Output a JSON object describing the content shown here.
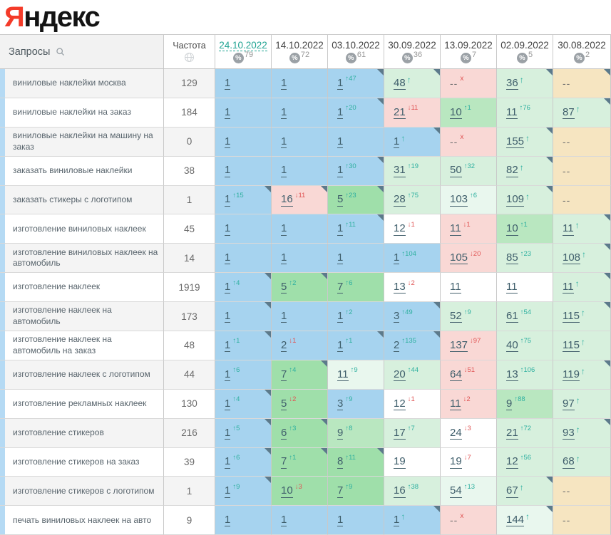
{
  "logo": {
    "first_letter": "Я",
    "rest": "ндекс"
  },
  "colors": {
    "logo_red": "#f43b29",
    "current_date_teal": "#23a493",
    "change_up_teal": "#2fb0a0",
    "change_down_red": "#e05555",
    "top3_blue": "#a6d3ef",
    "top10_green": "#9fdfaa",
    "green_light": "#b9e7c0",
    "green_pale": "#d7f0dd",
    "green_faint": "#e9f7ee",
    "declined_pink": "#f9d8d5",
    "absent_tan": "#f6e5c1",
    "note_corner": "#5c7a8b",
    "row_accent_strip": "#b5daf4"
  },
  "table": {
    "queries_header": "Запросы",
    "frequency_header": "Частота",
    "percent_glyph": "%",
    "date_columns": [
      {
        "date": "24.10.2022",
        "coverage": "79",
        "current": true
      },
      {
        "date": "14.10.2022",
        "coverage": "72",
        "current": false
      },
      {
        "date": "03.10.2022",
        "coverage": "61",
        "current": false
      },
      {
        "date": "30.09.2022",
        "coverage": "36",
        "current": false
      },
      {
        "date": "13.09.2022",
        "coverage": "7",
        "current": false
      },
      {
        "date": "02.09.2022",
        "coverage": "5",
        "current": false
      },
      {
        "date": "30.08.2022",
        "coverage": "2",
        "current": false
      }
    ],
    "rows": [
      {
        "query": "виниловые наклейки москва",
        "frequency": "129",
        "cells": [
          {
            "p": "1",
            "bg": "blue"
          },
          {
            "p": "1",
            "bg": "blue"
          },
          {
            "p": "1",
            "c": "47",
            "d": "up",
            "bg": "blue",
            "note": true
          },
          {
            "p": "48",
            "n": true,
            "bg": "g3",
            "note": true
          },
          {
            "p": "--",
            "x": true,
            "bg": "pink"
          },
          {
            "p": "36",
            "n": true,
            "bg": "g3",
            "note": true
          },
          {
            "p": "--",
            "bg": "tan",
            "note": true
          }
        ]
      },
      {
        "query": "виниловые наклейки на заказ",
        "frequency": "184",
        "cells": [
          {
            "p": "1",
            "bg": "blue"
          },
          {
            "p": "1",
            "bg": "blue"
          },
          {
            "p": "1",
            "c": "20",
            "d": "up",
            "bg": "blue",
            "note": true
          },
          {
            "p": "21",
            "c": "11",
            "d": "down",
            "bg": "pink"
          },
          {
            "p": "10",
            "c": "1",
            "d": "up",
            "bg": "g2"
          },
          {
            "p": "11",
            "c": "76",
            "d": "up",
            "bg": "g3"
          },
          {
            "p": "87",
            "n": true,
            "bg": "g3",
            "note": true
          }
        ]
      },
      {
        "query": "виниловые наклейки на машину на заказ",
        "frequency": "0",
        "cells": [
          {
            "p": "1",
            "bg": "blue"
          },
          {
            "p": "1",
            "bg": "blue"
          },
          {
            "p": "1",
            "bg": "blue"
          },
          {
            "p": "1",
            "n": true,
            "bg": "blue",
            "note": true
          },
          {
            "p": "--",
            "x": true,
            "bg": "pink"
          },
          {
            "p": "155",
            "n": true,
            "bg": "g3",
            "note": true
          },
          {
            "p": "--",
            "bg": "tan"
          }
        ]
      },
      {
        "query": "заказать виниловые наклейки",
        "frequency": "38",
        "cells": [
          {
            "p": "1",
            "bg": "blue"
          },
          {
            "p": "1",
            "bg": "blue"
          },
          {
            "p": "1",
            "c": "30",
            "d": "up",
            "bg": "blue",
            "note": true
          },
          {
            "p": "31",
            "c": "19",
            "d": "up",
            "bg": "g3"
          },
          {
            "p": "50",
            "c": "32",
            "d": "up",
            "bg": "g3"
          },
          {
            "p": "82",
            "n": true,
            "bg": "g3",
            "note": true
          },
          {
            "p": "--",
            "bg": "tan"
          }
        ]
      },
      {
        "query": "заказать стикеры с логотипом",
        "frequency": "1",
        "cells": [
          {
            "p": "1",
            "c": "15",
            "d": "up",
            "bg": "blue",
            "note": true
          },
          {
            "p": "16",
            "c": "11",
            "d": "down",
            "bg": "pink",
            "note": true
          },
          {
            "p": "5",
            "c": "23",
            "d": "up",
            "bg": "g1",
            "note": true
          },
          {
            "p": "28",
            "c": "75",
            "d": "up",
            "bg": "g3"
          },
          {
            "p": "103",
            "c": "6",
            "d": "up",
            "bg": "g4"
          },
          {
            "p": "109",
            "n": true,
            "bg": "g3",
            "note": true
          },
          {
            "p": "--",
            "bg": "tan"
          }
        ]
      },
      {
        "query": "изготовление виниловых наклеек",
        "frequency": "45",
        "cells": [
          {
            "p": "1",
            "bg": "blue"
          },
          {
            "p": "1",
            "bg": "blue"
          },
          {
            "p": "1",
            "c": "11",
            "d": "up",
            "bg": "blue",
            "note": true
          },
          {
            "p": "12",
            "c": "1",
            "d": "down",
            "bg": "white"
          },
          {
            "p": "11",
            "c": "1",
            "d": "down",
            "bg": "pink"
          },
          {
            "p": "10",
            "c": "1",
            "d": "up",
            "bg": "g2"
          },
          {
            "p": "11",
            "n": true,
            "bg": "g3",
            "note": true
          }
        ]
      },
      {
        "query": "изготовление виниловых наклеек на автомобиль",
        "frequency": "14",
        "cells": [
          {
            "p": "1",
            "bg": "blue"
          },
          {
            "p": "1",
            "bg": "blue"
          },
          {
            "p": "1",
            "bg": "blue"
          },
          {
            "p": "1",
            "c": "104",
            "d": "up",
            "bg": "blue"
          },
          {
            "p": "105",
            "c": "20",
            "d": "down",
            "bg": "pink"
          },
          {
            "p": "85",
            "c": "23",
            "d": "up",
            "bg": "g3"
          },
          {
            "p": "108",
            "n": true,
            "bg": "g3",
            "note": true
          }
        ]
      },
      {
        "query": "изготовление наклеек",
        "frequency": "1919",
        "cells": [
          {
            "p": "1",
            "c": "4",
            "d": "up",
            "bg": "blue",
            "note": true
          },
          {
            "p": "5",
            "c": "2",
            "d": "up",
            "bg": "g1",
            "note": true
          },
          {
            "p": "7",
            "c": "6",
            "d": "up",
            "bg": "g1"
          },
          {
            "p": "13",
            "c": "2",
            "d": "down",
            "bg": "white"
          },
          {
            "p": "11",
            "bg": "white"
          },
          {
            "p": "11",
            "bg": "white"
          },
          {
            "p": "11",
            "n": true,
            "bg": "g3",
            "note": true
          }
        ]
      },
      {
        "query": "изготовление наклеек на автомобиль",
        "frequency": "173",
        "cells": [
          {
            "p": "1",
            "bg": "blue",
            "note": true
          },
          {
            "p": "1",
            "bg": "blue"
          },
          {
            "p": "1",
            "c": "2",
            "d": "up",
            "bg": "blue"
          },
          {
            "p": "3",
            "c": "49",
            "d": "up",
            "bg": "blue",
            "note": true
          },
          {
            "p": "52",
            "c": "9",
            "d": "up",
            "bg": "g3"
          },
          {
            "p": "61",
            "c": "54",
            "d": "up",
            "bg": "g3"
          },
          {
            "p": "115",
            "n": true,
            "bg": "g3",
            "note": true
          }
        ]
      },
      {
        "query": "изготовление наклеек на автомобиль на заказ",
        "frequency": "48",
        "cells": [
          {
            "p": "1",
            "c": "1",
            "d": "up",
            "bg": "blue",
            "note": true
          },
          {
            "p": "2",
            "c": "1",
            "d": "down",
            "bg": "blue"
          },
          {
            "p": "1",
            "c": "1",
            "d": "up",
            "bg": "blue",
            "note": true
          },
          {
            "p": "2",
            "c": "135",
            "d": "up",
            "bg": "blue",
            "note": true
          },
          {
            "p": "137",
            "c": "97",
            "d": "down",
            "bg": "pink"
          },
          {
            "p": "40",
            "c": "75",
            "d": "up",
            "bg": "g3"
          },
          {
            "p": "115",
            "n": true,
            "bg": "g3"
          }
        ]
      },
      {
        "query": "изготовление наклеек с логотипом",
        "frequency": "44",
        "cells": [
          {
            "p": "1",
            "c": "6",
            "d": "up",
            "bg": "blue"
          },
          {
            "p": "7",
            "c": "4",
            "d": "up",
            "bg": "g1",
            "note": true
          },
          {
            "p": "11",
            "c": "9",
            "d": "up",
            "bg": "g4"
          },
          {
            "p": "20",
            "c": "44",
            "d": "up",
            "bg": "g3"
          },
          {
            "p": "64",
            "c": "51",
            "d": "down",
            "bg": "pink"
          },
          {
            "p": "13",
            "c": "106",
            "d": "up",
            "bg": "g3"
          },
          {
            "p": "119",
            "n": true,
            "bg": "g3",
            "note": true
          }
        ]
      },
      {
        "query": "изготовление рекламных наклеек",
        "frequency": "130",
        "cells": [
          {
            "p": "1",
            "c": "4",
            "d": "up",
            "bg": "blue",
            "note": true
          },
          {
            "p": "5",
            "c": "2",
            "d": "down",
            "bg": "g1"
          },
          {
            "p": "3",
            "c": "9",
            "d": "up",
            "bg": "blue"
          },
          {
            "p": "12",
            "c": "1",
            "d": "down",
            "bg": "white"
          },
          {
            "p": "11",
            "c": "2",
            "d": "down",
            "bg": "pink"
          },
          {
            "p": "9",
            "c": "88",
            "d": "up",
            "bg": "g2"
          },
          {
            "p": "97",
            "n": true,
            "bg": "g3"
          }
        ]
      },
      {
        "query": "изготовление стикеров",
        "frequency": "216",
        "cells": [
          {
            "p": "1",
            "c": "5",
            "d": "up",
            "bg": "blue",
            "note": true
          },
          {
            "p": "6",
            "c": "3",
            "d": "up",
            "bg": "g1",
            "note": true
          },
          {
            "p": "9",
            "c": "8",
            "d": "up",
            "bg": "g2"
          },
          {
            "p": "17",
            "c": "7",
            "d": "up",
            "bg": "g3"
          },
          {
            "p": "24",
            "c": "3",
            "d": "down",
            "bg": "white"
          },
          {
            "p": "21",
            "c": "72",
            "d": "up",
            "bg": "g3"
          },
          {
            "p": "93",
            "n": true,
            "bg": "g3",
            "note": true
          }
        ]
      },
      {
        "query": "изготовление стикеров на заказ",
        "frequency": "39",
        "cells": [
          {
            "p": "1",
            "c": "6",
            "d": "up",
            "bg": "blue",
            "note": true
          },
          {
            "p": "7",
            "c": "1",
            "d": "up",
            "bg": "g1",
            "note": true
          },
          {
            "p": "8",
            "c": "11",
            "d": "up",
            "bg": "g1",
            "note": true
          },
          {
            "p": "19",
            "bg": "white"
          },
          {
            "p": "19",
            "c": "7",
            "d": "down",
            "bg": "white"
          },
          {
            "p": "12",
            "c": "56",
            "d": "up",
            "bg": "g3"
          },
          {
            "p": "68",
            "n": true,
            "bg": "g3"
          }
        ]
      },
      {
        "query": "изготовление стикеров с логотипом",
        "frequency": "1",
        "cells": [
          {
            "p": "1",
            "c": "9",
            "d": "up",
            "bg": "blue",
            "note": true
          },
          {
            "p": "10",
            "c": "3",
            "d": "down",
            "bg": "g1"
          },
          {
            "p": "7",
            "c": "9",
            "d": "up",
            "bg": "g1"
          },
          {
            "p": "16",
            "c": "38",
            "d": "up",
            "bg": "g3"
          },
          {
            "p": "54",
            "c": "13",
            "d": "up",
            "bg": "g4"
          },
          {
            "p": "67",
            "n": true,
            "bg": "g3",
            "note": true
          },
          {
            "p": "--",
            "bg": "tan"
          }
        ]
      },
      {
        "query": "печать виниловых наклеек на авто",
        "frequency": "9",
        "cells": [
          {
            "p": "1",
            "bg": "blue"
          },
          {
            "p": "1",
            "bg": "blue"
          },
          {
            "p": "1",
            "bg": "blue"
          },
          {
            "p": "1",
            "n": true,
            "bg": "blue",
            "note": true
          },
          {
            "p": "--",
            "x": true,
            "bg": "pink"
          },
          {
            "p": "144",
            "n": true,
            "bg": "g4",
            "note": true
          },
          {
            "p": "--",
            "bg": "tan"
          }
        ]
      }
    ]
  }
}
